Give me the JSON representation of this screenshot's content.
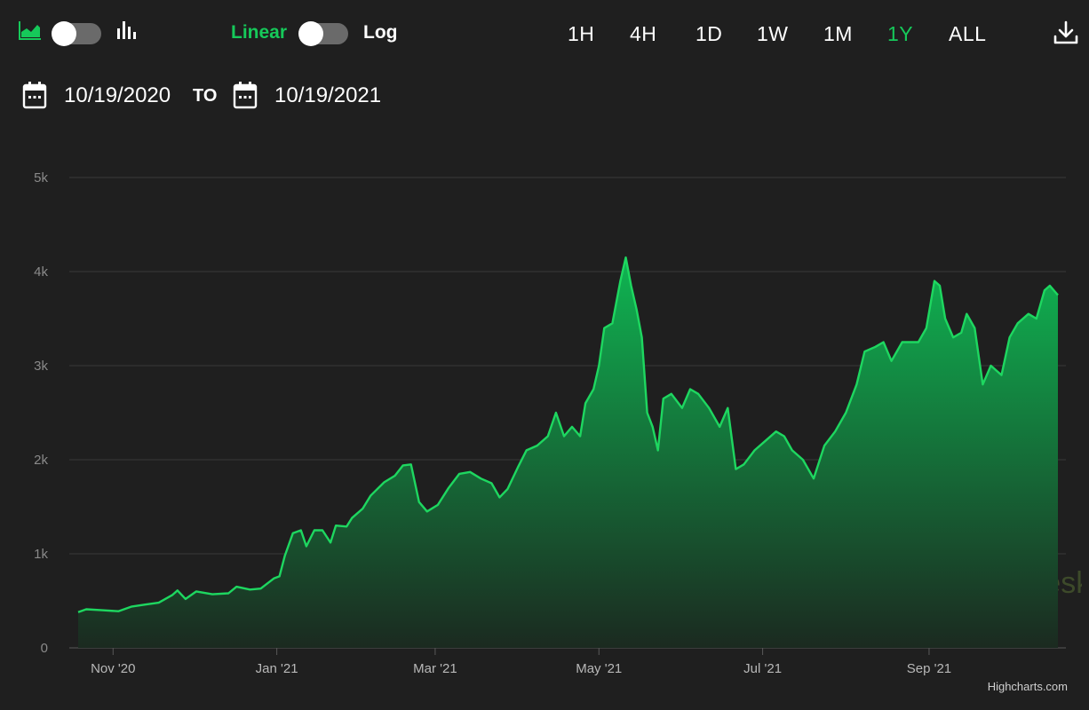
{
  "toolbar": {
    "chart_type_icons": [
      "area-chart-icon",
      "bar-chart-icon"
    ],
    "scale": {
      "linear_label": "Linear",
      "log_label": "Log",
      "active": "Linear"
    },
    "ranges": [
      "1H",
      "4H",
      "1D",
      "1W",
      "1M",
      "1Y",
      "ALL"
    ],
    "active_range": "1Y",
    "download_icon": "download-icon"
  },
  "date_range": {
    "from": "10/19/2020",
    "to_label": "TO",
    "to": "10/19/2021",
    "calendar_icon": "calendar-icon"
  },
  "colors": {
    "accent": "#16c95a",
    "line": "#1ed760",
    "area_top": "#0fb552",
    "area_bottom": "#1b2a20",
    "grid": "#3a3a3a",
    "background": "#1f1f1f"
  },
  "watermark": "coindesk",
  "credits": "Highcharts.com",
  "chart_data": {
    "type": "area",
    "title": "",
    "xlabel": "",
    "ylabel": "",
    "x_range": [
      "2020-10-19",
      "2021-10-19"
    ],
    "ylim": [
      0,
      5000
    ],
    "y_ticks": [
      0,
      1000,
      2000,
      3000,
      4000,
      5000
    ],
    "y_tick_labels": [
      "0",
      "1k",
      "2k",
      "3k",
      "4k",
      "5k"
    ],
    "x_ticks": [
      {
        "date": "2020-11-01",
        "label": "Nov '20"
      },
      {
        "date": "2021-01-01",
        "label": "Jan '21"
      },
      {
        "date": "2021-03-01",
        "label": "Mar '21"
      },
      {
        "date": "2021-05-01",
        "label": "May '21"
      },
      {
        "date": "2021-07-01",
        "label": "Jul '21"
      },
      {
        "date": "2021-09-01",
        "label": "Sep '21"
      }
    ],
    "grid": true,
    "legend": "none",
    "series": [
      {
        "points": [
          [
            "2020-10-19",
            380
          ],
          [
            "2020-10-22",
            410
          ],
          [
            "2020-10-28",
            400
          ],
          [
            "2020-11-03",
            390
          ],
          [
            "2020-11-08",
            440
          ],
          [
            "2020-11-13",
            460
          ],
          [
            "2020-11-18",
            480
          ],
          [
            "2020-11-23",
            560
          ],
          [
            "2020-11-25",
            610
          ],
          [
            "2020-11-28",
            520
          ],
          [
            "2020-12-02",
            600
          ],
          [
            "2020-12-08",
            570
          ],
          [
            "2020-12-14",
            580
          ],
          [
            "2020-12-17",
            650
          ],
          [
            "2020-12-22",
            620
          ],
          [
            "2020-12-26",
            630
          ],
          [
            "2020-12-31",
            740
          ],
          [
            "2021-01-02",
            760
          ],
          [
            "2021-01-04",
            980
          ],
          [
            "2021-01-07",
            1220
          ],
          [
            "2021-01-10",
            1250
          ],
          [
            "2021-01-12",
            1080
          ],
          [
            "2021-01-15",
            1250
          ],
          [
            "2021-01-18",
            1250
          ],
          [
            "2021-01-21",
            1120
          ],
          [
            "2021-01-23",
            1300
          ],
          [
            "2021-01-27",
            1290
          ],
          [
            "2021-01-29",
            1380
          ],
          [
            "2021-02-02",
            1480
          ],
          [
            "2021-02-05",
            1620
          ],
          [
            "2021-02-10",
            1760
          ],
          [
            "2021-02-14",
            1830
          ],
          [
            "2021-02-17",
            1940
          ],
          [
            "2021-02-20",
            1950
          ],
          [
            "2021-02-23",
            1550
          ],
          [
            "2021-02-26",
            1450
          ],
          [
            "2021-03-02",
            1520
          ],
          [
            "2021-03-06",
            1700
          ],
          [
            "2021-03-10",
            1850
          ],
          [
            "2021-03-14",
            1870
          ],
          [
            "2021-03-18",
            1800
          ],
          [
            "2021-03-22",
            1750
          ],
          [
            "2021-03-25",
            1600
          ],
          [
            "2021-03-28",
            1690
          ],
          [
            "2021-04-01",
            1930
          ],
          [
            "2021-04-04",
            2100
          ],
          [
            "2021-04-08",
            2150
          ],
          [
            "2021-04-12",
            2250
          ],
          [
            "2021-04-15",
            2500
          ],
          [
            "2021-04-18",
            2250
          ],
          [
            "2021-04-21",
            2350
          ],
          [
            "2021-04-24",
            2250
          ],
          [
            "2021-04-26",
            2600
          ],
          [
            "2021-04-29",
            2750
          ],
          [
            "2021-05-01",
            3000
          ],
          [
            "2021-05-03",
            3400
          ],
          [
            "2021-05-06",
            3450
          ],
          [
            "2021-05-09",
            3900
          ],
          [
            "2021-05-11",
            4150
          ],
          [
            "2021-05-13",
            3850
          ],
          [
            "2021-05-15",
            3600
          ],
          [
            "2021-05-17",
            3300
          ],
          [
            "2021-05-19",
            2500
          ],
          [
            "2021-05-21",
            2350
          ],
          [
            "2021-05-23",
            2100
          ],
          [
            "2021-05-25",
            2650
          ],
          [
            "2021-05-28",
            2700
          ],
          [
            "2021-06-01",
            2550
          ],
          [
            "2021-06-04",
            2750
          ],
          [
            "2021-06-07",
            2700
          ],
          [
            "2021-06-11",
            2550
          ],
          [
            "2021-06-15",
            2350
          ],
          [
            "2021-06-18",
            2550
          ],
          [
            "2021-06-21",
            1900
          ],
          [
            "2021-06-24",
            1950
          ],
          [
            "2021-06-28",
            2100
          ],
          [
            "2021-07-02",
            2200
          ],
          [
            "2021-07-06",
            2300
          ],
          [
            "2021-07-09",
            2250
          ],
          [
            "2021-07-12",
            2100
          ],
          [
            "2021-07-16",
            2000
          ],
          [
            "2021-07-20",
            1800
          ],
          [
            "2021-07-24",
            2150
          ],
          [
            "2021-07-28",
            2300
          ],
          [
            "2021-08-01",
            2500
          ],
          [
            "2021-08-05",
            2800
          ],
          [
            "2021-08-08",
            3150
          ],
          [
            "2021-08-12",
            3200
          ],
          [
            "2021-08-15",
            3250
          ],
          [
            "2021-08-18",
            3050
          ],
          [
            "2021-08-22",
            3250
          ],
          [
            "2021-08-25",
            3250
          ],
          [
            "2021-08-28",
            3250
          ],
          [
            "2021-08-31",
            3400
          ],
          [
            "2021-09-03",
            3900
          ],
          [
            "2021-09-05",
            3850
          ],
          [
            "2021-09-07",
            3500
          ],
          [
            "2021-09-10",
            3300
          ],
          [
            "2021-09-13",
            3350
          ],
          [
            "2021-09-15",
            3550
          ],
          [
            "2021-09-18",
            3400
          ],
          [
            "2021-09-21",
            2800
          ],
          [
            "2021-09-24",
            3000
          ],
          [
            "2021-09-28",
            2900
          ],
          [
            "2021-10-01",
            3300
          ],
          [
            "2021-10-04",
            3450
          ],
          [
            "2021-10-08",
            3550
          ],
          [
            "2021-10-11",
            3500
          ],
          [
            "2021-10-14",
            3800
          ],
          [
            "2021-10-16",
            3850
          ],
          [
            "2021-10-19",
            3750
          ]
        ]
      }
    ]
  }
}
